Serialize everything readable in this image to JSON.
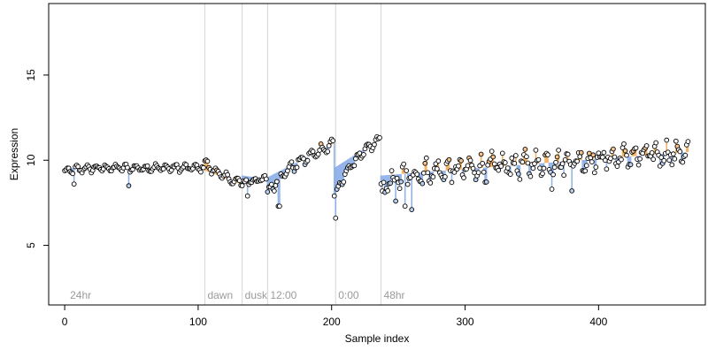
{
  "chart_data": {
    "type": "scatter",
    "title": "",
    "xlabel": "Sample index",
    "ylabel": "Expression",
    "xlim": [
      -12,
      480
    ],
    "ylim": [
      1.5,
      19.2
    ],
    "xticks": [
      0,
      100,
      200,
      300,
      400
    ],
    "yticks": [
      5,
      10,
      15
    ],
    "grid": false,
    "legend": "none",
    "colors": {
      "point_fill_default": "#ffffff",
      "point_fill_highlight": "#f4c28a",
      "point_fill_low": "#b8cff0",
      "point_stroke": "#000000",
      "segment_above": "#f0a040",
      "segment_below": "#7aa3e5",
      "annotation_line": "#d6d6d6",
      "annotation_text": "#9a9a9a"
    },
    "annotations": [
      {
        "x": 2,
        "label": "24hr",
        "line": false
      },
      {
        "x": 105,
        "label": "dawn",
        "line": true
      },
      {
        "x": 133,
        "label": "dusk",
        "line": true
      },
      {
        "x": 152,
        "label": "12:00",
        "line": true
      },
      {
        "x": 203,
        "label": "0:00",
        "line": true
      },
      {
        "x": 237,
        "label": "48hr",
        "line": true
      }
    ],
    "segments": [
      {
        "x0": 0,
        "x1": 105,
        "baseline": 9.55,
        "y0": 9.3,
        "amp": 0.35,
        "wig": 0.11,
        "period": 3.7,
        "trend": 0.0,
        "phase": 0.3
      },
      {
        "x0": 105,
        "x1": 133,
        "baseline": 9.4,
        "y0": 9.85,
        "amp": 0.5,
        "wig": 0.12,
        "period": 3.9,
        "trend": -0.03,
        "phase": 0.8
      },
      {
        "x0": 133,
        "x1": 152,
        "baseline": 9.1,
        "y0": 8.6,
        "amp": 0.3,
        "wig": 0.15,
        "period": 3.8,
        "trend": -0.01,
        "phase": 0.1
      },
      {
        "x0": 152,
        "x1": 203,
        "baseline": 9.0,
        "y0": 8.0,
        "amp": 0.6,
        "wig": 0.14,
        "period": 3.9,
        "trend": 0.04,
        "phase": 0.5
      },
      {
        "x0": 203,
        "x1": 237,
        "baseline": 9.6,
        "y0": 7.8,
        "amp": 0.55,
        "wig": 0.12,
        "period": 3.7,
        "trend": 0.05,
        "phase": 0.2
      },
      {
        "x0": 237,
        "x1": 468,
        "baseline": 9.1,
        "y0": 8.0,
        "amp": 1.0,
        "wig": 0.45,
        "period": 4.1,
        "trend": 0.006,
        "phase": 0.9
      }
    ],
    "outliers": [
      {
        "x": 203,
        "y": 6.6
      },
      {
        "x": 202,
        "y": 7.9
      },
      {
        "x": 137,
        "y": 7.9
      },
      {
        "x": 160,
        "y": 7.3
      },
      {
        "x": 161,
        "y": 7.3
      },
      {
        "x": 255,
        "y": 7.3
      },
      {
        "x": 260,
        "y": 7.1
      },
      {
        "x": 248,
        "y": 7.6
      },
      {
        "x": 7,
        "y": 8.6
      },
      {
        "x": 48,
        "y": 8.5
      },
      {
        "x": 380,
        "y": 8.2
      },
      {
        "x": 365,
        "y": 8.3
      }
    ]
  }
}
